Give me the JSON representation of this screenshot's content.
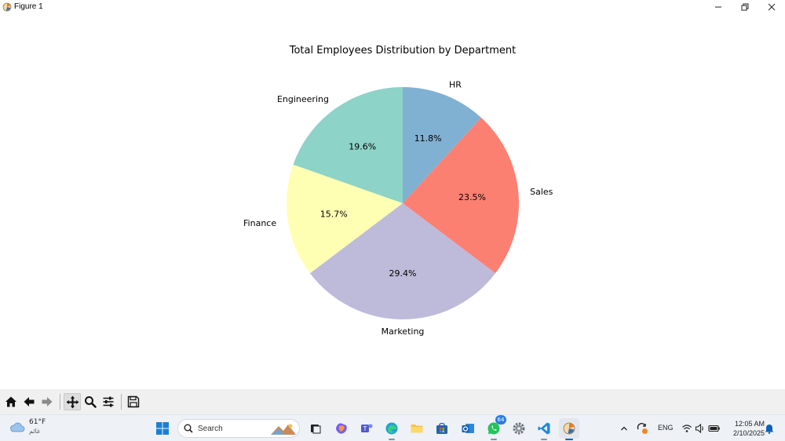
{
  "window": {
    "title": "Figure 1"
  },
  "chart_data": {
    "type": "pie",
    "title": "Total Employees Distribution by Department",
    "categories": [
      "HR",
      "Sales",
      "Marketing",
      "Finance",
      "Engineering"
    ],
    "values": [
      11.8,
      23.5,
      29.4,
      15.7,
      19.6
    ],
    "value_labels": [
      "11.8%",
      "23.5%",
      "29.4%",
      "15.7%",
      "19.6%"
    ],
    "colors": [
      "#80b1d3",
      "#fb8072",
      "#bebada",
      "#ffffb3",
      "#8dd3c7"
    ],
    "start_angle_deg": 90,
    "direction": "clockwise"
  },
  "toolbar": {
    "buttons": [
      "home-icon",
      "back-icon",
      "forward-icon",
      "pan-icon",
      "zoom-icon",
      "configure-icon",
      "save-icon"
    ],
    "active": "pan-icon"
  },
  "taskbar": {
    "weather": {
      "temp": "61°F",
      "condition": "غائم"
    },
    "search_label": "Search",
    "whatsapp_badge": "64",
    "language": "ENG",
    "time": "12:05 AM",
    "date": "2/10/2025"
  }
}
